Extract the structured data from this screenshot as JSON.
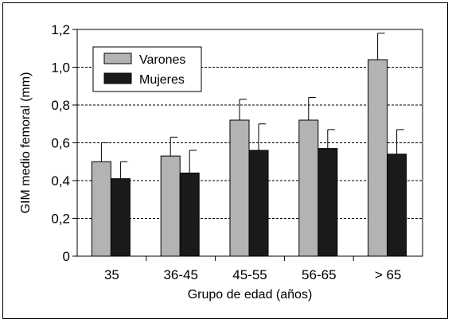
{
  "chart_data": {
    "type": "bar",
    "title": "",
    "xlabel": "Grupo de edad (años)",
    "ylabel": "GIM medio femoral (mm)",
    "categories": [
      "35",
      "36-45",
      "45-55",
      "56-65",
      "> 65"
    ],
    "ylim": [
      0,
      1.2
    ],
    "yticks": [
      "0",
      "0,2",
      "0,4",
      "0,6",
      "0,8",
      "1,0",
      "1,2"
    ],
    "ytick_values": [
      0,
      0.2,
      0.4,
      0.6,
      0.8,
      1.0,
      1.2
    ],
    "grid": "horizontal dashed",
    "legend_position": "top-left",
    "series": [
      {
        "name": "Varones",
        "color": "#b3b3b3",
        "values": [
          0.5,
          0.53,
          0.72,
          0.72,
          1.04
        ],
        "error_upper": [
          0.6,
          0.63,
          0.83,
          0.84,
          1.18
        ]
      },
      {
        "name": "Mujeres",
        "color": "#1a1a1a",
        "values": [
          0.41,
          0.44,
          0.56,
          0.57,
          0.54
        ],
        "error_upper": [
          0.5,
          0.56,
          0.7,
          0.67,
          0.67
        ]
      }
    ]
  }
}
